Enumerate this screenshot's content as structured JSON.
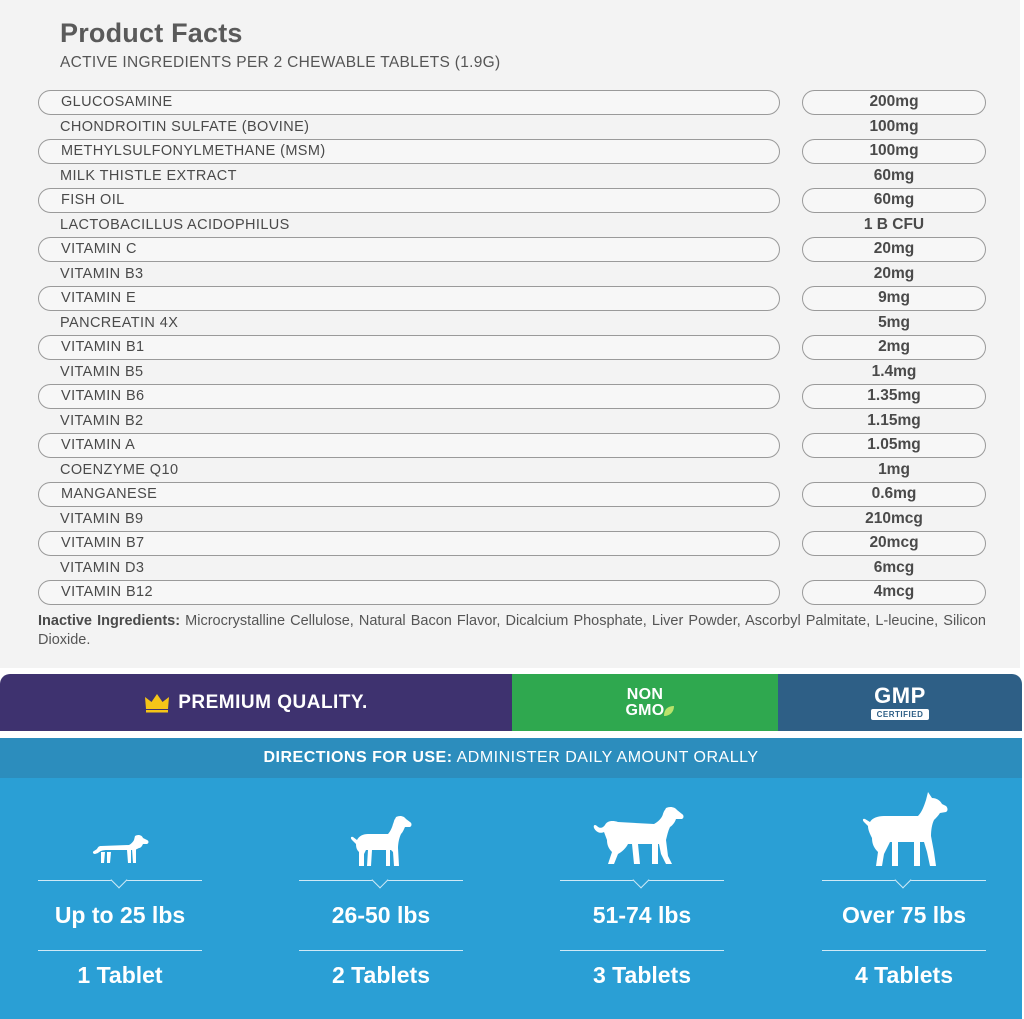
{
  "facts": {
    "title": "Product Facts",
    "subtitle": "ACTIVE INGREDIENTS PER 2 CHEWABLE TABLETS (1.9G)",
    "ingredients": [
      {
        "name": "GLUCOSAMINE",
        "amount": "200mg"
      },
      {
        "name": "CHONDROITIN SULFATE (BOVINE)",
        "amount": "100mg"
      },
      {
        "name": "METHYLSULFONYLMETHANE (MSM)",
        "amount": "100mg"
      },
      {
        "name": "MILK THISTLE EXTRACT",
        "amount": "60mg"
      },
      {
        "name": "FISH OIL",
        "amount": "60mg"
      },
      {
        "name": "LACTOBACILLUS ACIDOPHILUS",
        "amount": "1 B CFU"
      },
      {
        "name": "VITAMIN C",
        "amount": "20mg"
      },
      {
        "name": "VITAMIN B3",
        "amount": "20mg"
      },
      {
        "name": "VITAMIN E",
        "amount": "9mg"
      },
      {
        "name": "PANCREATIN 4X",
        "amount": "5mg"
      },
      {
        "name": "VITAMIN B1",
        "amount": "2mg"
      },
      {
        "name": "VITAMIN B5",
        "amount": "1.4mg"
      },
      {
        "name": "VITAMIN B6",
        "amount": "1.35mg"
      },
      {
        "name": "VITAMIN B2",
        "amount": "1.15mg"
      },
      {
        "name": "VITAMIN A",
        "amount": "1.05mg"
      },
      {
        "name": "COENZYME Q10",
        "amount": "1mg"
      },
      {
        "name": "MANGANESE",
        "amount": "0.6mg"
      },
      {
        "name": "VITAMIN B9",
        "amount": "210mcg"
      },
      {
        "name": "VITAMIN B7",
        "amount": "20mcg"
      },
      {
        "name": "VITAMIN D3",
        "amount": "6mcg"
      },
      {
        "name": "VITAMIN B12",
        "amount": "4mcg"
      }
    ],
    "inactive_label": "Inactive Ingredients:",
    "inactive_text": "Microcrystalline Cellulose, Natural Bacon Flavor, Dicalcium Phosphate, Liver Powder, Ascorbyl Palmitate, L-leucine, Silicon Dioxide."
  },
  "badges": {
    "premium": "PREMIUM QUALITY.",
    "nongmo_line1": "NON",
    "nongmo_line2": "GMO",
    "gmp": "GMP",
    "gmp_certified": "CERTIFIED"
  },
  "directions": {
    "label": "DIRECTIONS FOR USE:",
    "text": "ADMINISTER DAILY AMOUNT ORALLY",
    "dosages": [
      {
        "weight": "Up to 25 lbs",
        "tablets": "1 Tablet",
        "icon": "small-dachshund-icon"
      },
      {
        "weight": "26-50 lbs",
        "tablets": "2 Tablets",
        "icon": "medium-dog-icon"
      },
      {
        "weight": "51-74 lbs",
        "tablets": "3 Tablets",
        "icon": "large-retriever-icon"
      },
      {
        "weight": "Over 75 lbs",
        "tablets": "4 Tablets",
        "icon": "boxer-dog-icon"
      }
    ]
  },
  "colors": {
    "premium_bg": "#3e326f",
    "nongmo_bg": "#2fa84f",
    "gmp_bg": "#2e5f86",
    "directions_bg": "#2a9fd5",
    "directions_bar": "#2c8dbd",
    "crown": "#f5c518"
  }
}
